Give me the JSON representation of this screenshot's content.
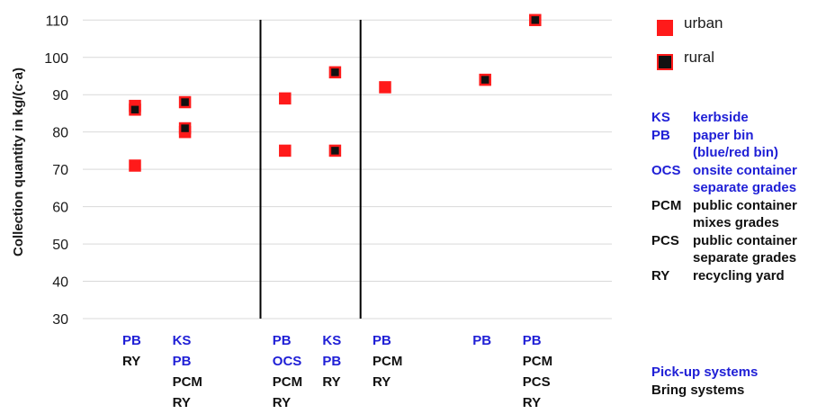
{
  "chart_data": {
    "type": "scatter",
    "ylabel": "Collection quantity in kg/(c·a)",
    "ylim": [
      30,
      112
    ],
    "yticks": [
      30,
      40,
      50,
      60,
      70,
      80,
      90,
      100,
      110
    ],
    "grid": true,
    "dividers_after_category": [
      3,
      5
    ],
    "categories": [
      {
        "lines": [
          {
            "text": "PB",
            "color": "#1f1fd6"
          },
          {
            "text": "RY",
            "color": "#111111"
          }
        ]
      },
      {
        "lines": [
          {
            "text": "KS",
            "color": "#1f1fd6"
          },
          {
            "text": "PB",
            "color": "#1f1fd6"
          },
          {
            "text": "PCM",
            "color": "#111111"
          },
          {
            "text": "RY",
            "color": "#111111"
          }
        ]
      },
      {
        "lines": []
      },
      {
        "lines": [
          {
            "text": "PB",
            "color": "#1f1fd6"
          },
          {
            "text": "OCS",
            "color": "#1f1fd6"
          },
          {
            "text": "PCM",
            "color": "#111111"
          },
          {
            "text": "RY",
            "color": "#111111"
          }
        ]
      },
      {
        "lines": [
          {
            "text": "KS",
            "color": "#1f1fd6"
          },
          {
            "text": "PB",
            "color": "#1f1fd6"
          },
          {
            "text": "RY",
            "color": "#111111"
          }
        ]
      },
      {
        "lines": [
          {
            "text": "PB",
            "color": "#1f1fd6"
          },
          {
            "text": "PCM",
            "color": "#111111"
          },
          {
            "text": "RY",
            "color": "#111111"
          }
        ]
      },
      {
        "lines": []
      },
      {
        "lines": [
          {
            "text": "PB",
            "color": "#1f1fd6"
          }
        ]
      },
      {
        "lines": [
          {
            "text": "PB",
            "color": "#1f1fd6"
          },
          {
            "text": "PCM",
            "color": "#111111"
          },
          {
            "text": "PCS",
            "color": "#111111"
          },
          {
            "text": "RY",
            "color": "#111111"
          }
        ]
      }
    ],
    "series": [
      {
        "name": "urban",
        "color": "#ff1a1a",
        "points": [
          {
            "category": 0,
            "y": 87
          },
          {
            "category": 0,
            "y": 71
          },
          {
            "category": 1,
            "y": 80
          },
          {
            "category": 3,
            "y": 89
          },
          {
            "category": 3,
            "y": 75
          },
          {
            "category": 5,
            "y": 92
          }
        ]
      },
      {
        "name": "rural",
        "color": "#111111",
        "border": "#ff1a1a",
        "points": [
          {
            "category": 0,
            "y": 86
          },
          {
            "category": 1,
            "y": 88
          },
          {
            "category": 1,
            "y": 81
          },
          {
            "category": 4,
            "y": 96
          },
          {
            "category": 4,
            "y": 75
          },
          {
            "category": 7,
            "y": 94
          },
          {
            "category": 8,
            "y": 110
          }
        ]
      }
    ]
  },
  "legend": {
    "items": [
      {
        "label": "urban",
        "fill": "#ff1a1a",
        "border": "#ff1a1a"
      },
      {
        "label": "rural",
        "fill": "#111111",
        "border": "#ff1a1a"
      }
    ]
  },
  "abbreviations": {
    "items": [
      {
        "code": "KS",
        "desc": "kerbside",
        "color": "#1f1fd6"
      },
      {
        "code": "PB",
        "desc": "paper bin",
        "color": "#1f1fd6"
      },
      {
        "code": "",
        "desc": "(blue/red bin)",
        "color": "#1f1fd6"
      },
      {
        "code": "OCS",
        "desc": "onsite container",
        "color": "#1f1fd6"
      },
      {
        "code": "",
        "desc": "separate grades",
        "color": "#1f1fd6"
      },
      {
        "code": "PCM",
        "desc": "public container",
        "color": "#111111"
      },
      {
        "code": "",
        "desc": "mixes grades",
        "color": "#111111"
      },
      {
        "code": "PCS",
        "desc": "public container",
        "color": "#111111"
      },
      {
        "code": "",
        "desc": "separate grades",
        "color": "#111111"
      },
      {
        "code": "RY",
        "desc": "recycling yard",
        "color": "#111111"
      }
    ]
  },
  "systems": {
    "pickup": "Pick-up systems",
    "pickup_color": "#1f1fd6",
    "bring": "Bring systems",
    "bring_color": "#111111"
  }
}
